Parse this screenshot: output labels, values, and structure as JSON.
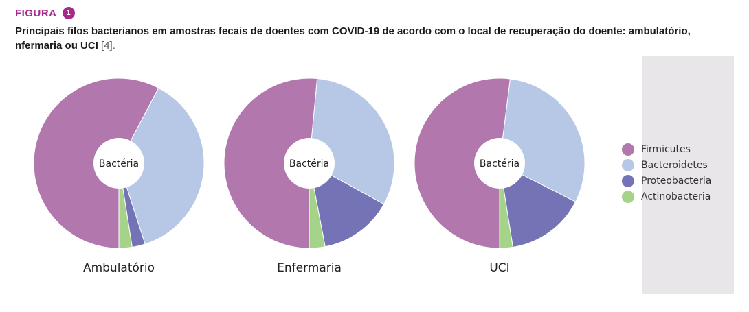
{
  "figure": {
    "label": "FIGURA",
    "number": "1",
    "title": "Principais filos bacterianos em amostras fecais de doentes com COVID-19 de acordo com o local de recuperação do doente: ambulatório, nfermaria ou UCI",
    "reference": "[4]."
  },
  "colors": {
    "Firmicutes": "#b277ad",
    "Bacteroidetes": "#b7c8e6",
    "Proteobacteria": "#7373b6",
    "Actinobacteria": "#a6d38a",
    "accent": "#a52a8c"
  },
  "chart_data": [
    {
      "type": "pie",
      "title": "Ambulatório",
      "center_label": "Bactéria",
      "series": [
        "Firmicutes",
        "Bacteroidetes",
        "Proteobacteria",
        "Actinobacteria"
      ],
      "values": [
        58,
        37.5,
        2.5,
        2.5
      ],
      "legend": "right"
    },
    {
      "type": "pie",
      "title": "Enfermaria",
      "center_label": "Bactéria",
      "series": [
        "Firmicutes",
        "Bacteroidetes",
        "Proteobacteria",
        "Actinobacteria"
      ],
      "values": [
        51.5,
        31.5,
        14,
        3
      ],
      "legend": "right"
    },
    {
      "type": "pie",
      "title": "UCI",
      "center_label": "Bactéria",
      "series": [
        "Firmicutes",
        "Bacteroidetes",
        "Proteobacteria",
        "Actinobacteria"
      ],
      "values": [
        52,
        30.5,
        15,
        2.5
      ],
      "legend": "right"
    }
  ],
  "legend": [
    "Firmicutes",
    "Bacteroidetes",
    "Proteobacteria",
    "Actinobacteria"
  ]
}
